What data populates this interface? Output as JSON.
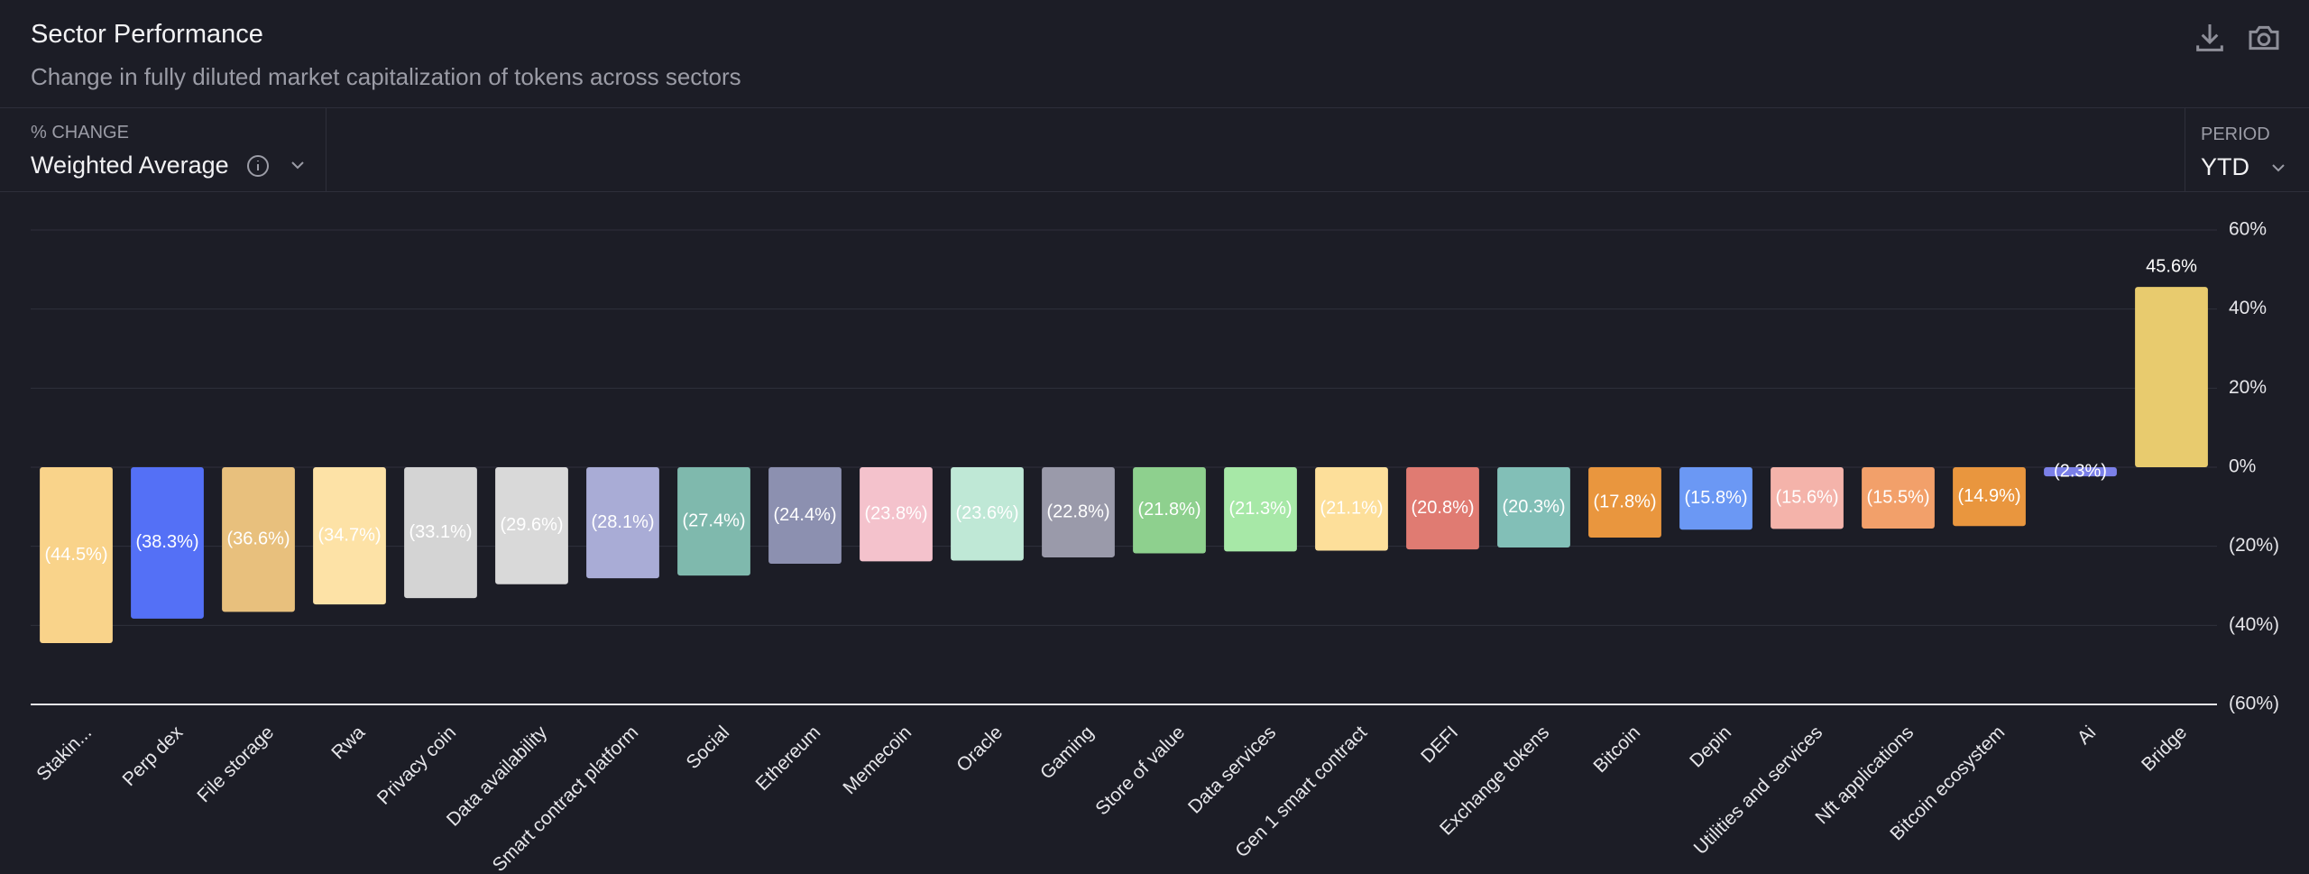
{
  "header": {
    "title": "Sector Performance",
    "subtitle": "Change in fully diluted market capitalization of tokens across sectors"
  },
  "controls": {
    "metric_label": "% CHANGE",
    "metric_value": "Weighted Average",
    "period_label": "PERIOD",
    "period_value": "YTD"
  },
  "chart_data": {
    "type": "bar",
    "categories": [
      "Stakin...",
      "Perp dex",
      "File storage",
      "Rwa",
      "Privacy coin",
      "Data availability",
      "Smart contract platform",
      "Social",
      "Ethereum",
      "Memecoin",
      "Oracle",
      "Gaming",
      "Store of value",
      "Data services",
      "Gen 1 smart contract",
      "DEFI",
      "Exchange tokens",
      "Bitcoin",
      "Depin",
      "Utilities and services",
      "Nft applications",
      "Bitcoin ecosystem",
      "Ai",
      "Bridge"
    ],
    "values": [
      -44.5,
      -38.3,
      -36.6,
      -34.7,
      -33.1,
      -29.6,
      -28.1,
      -27.4,
      -24.4,
      -23.8,
      -23.6,
      -22.8,
      -21.8,
      -21.3,
      -21.1,
      -20.8,
      -20.3,
      -17.8,
      -15.8,
      -15.6,
      -15.5,
      -14.9,
      -2.3,
      45.6
    ],
    "value_labels": [
      "(44.5%)",
      "(38.3%)",
      "(36.6%)",
      "(34.7%)",
      "(33.1%)",
      "(29.6%)",
      "(28.1%)",
      "(27.4%)",
      "(24.4%)",
      "(23.8%)",
      "(23.6%)",
      "(22.8%)",
      "(21.8%)",
      "(21.3%)",
      "(21.1%)",
      "(20.8%)",
      "(20.3%)",
      "(17.8%)",
      "(15.8%)",
      "(15.6%)",
      "(15.5%)",
      "(14.9%)",
      "(2.3%)",
      "45.6%"
    ],
    "colors": [
      "#f9d38a",
      "#5470f6",
      "#e8c07d",
      "#fde2a6",
      "#d4d4d4",
      "#d9d9d9",
      "#a9acd6",
      "#7fb9ad",
      "#8c90b0",
      "#f4c2cc",
      "#bfe8d6",
      "#9a9aaa",
      "#8ed08e",
      "#a7e8a7",
      "#fddf9a",
      "#e07b72",
      "#82bfb7",
      "#e9963e",
      "#6b98f4",
      "#f4b3aa",
      "#f2a06a",
      "#e9963e",
      "#7b80e8",
      "#e8cb6e"
    ],
    "ylim": [
      -60,
      60
    ],
    "yticks": [
      {
        "value": 60,
        "label": "60%"
      },
      {
        "value": 40,
        "label": "40%"
      },
      {
        "value": 20,
        "label": "20%"
      },
      {
        "value": 0,
        "label": "0%"
      },
      {
        "value": -20,
        "label": "(20%)"
      },
      {
        "value": -40,
        "label": "(40%)"
      },
      {
        "value": -60,
        "label": "(60%)"
      }
    ],
    "grid": true
  }
}
